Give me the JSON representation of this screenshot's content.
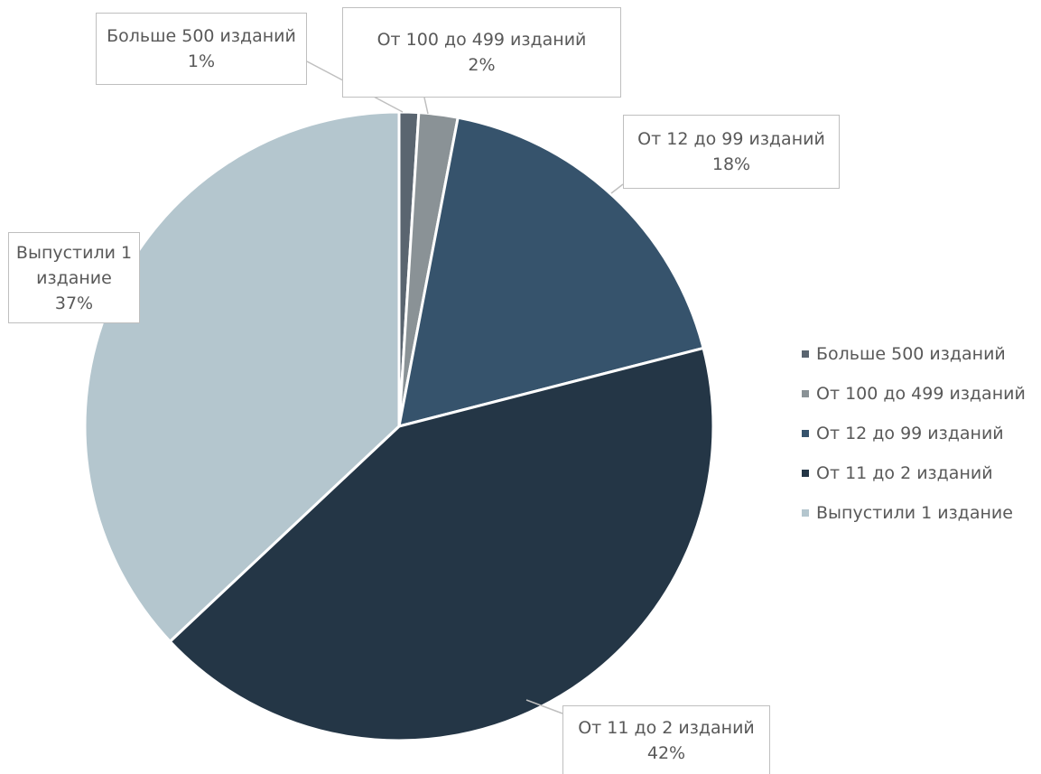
{
  "chart_data": {
    "type": "pie",
    "title": "",
    "slices": [
      {
        "label": "Больше 500 изданий",
        "value": 1,
        "value_label": "1%",
        "color": "#5a6570"
      },
      {
        "label": "От 100 до 499 изданий",
        "value": 2,
        "value_label": "2%",
        "color": "#8a9296"
      },
      {
        "label": "От 12 до 99 изданий",
        "value": 18,
        "value_label": "18%",
        "color": "#36536c"
      },
      {
        "label": "От 11 до 2 изданий",
        "value": 42,
        "value_label": "42%",
        "color": "#243646"
      },
      {
        "label": "Выпустили 1 издание",
        "value": 37,
        "value_label": "37%",
        "color": "#b4c6ce"
      }
    ],
    "legend": {
      "position": "right",
      "items": [
        {
          "label": "Больше 500 изданий",
          "color": "#5a6570"
        },
        {
          "label": "От 100 до 499 изданий",
          "color": "#8a9296"
        },
        {
          "label": "От 12 до 99 изданий",
          "color": "#36536c"
        },
        {
          "label": "От 11 до 2 изданий",
          "color": "#243646"
        },
        {
          "label": "Выпустили 1 издание",
          "color": "#b4c6ce"
        }
      ]
    },
    "labels": [
      {
        "lines": [
          "Больше 500 изданий"
        ],
        "value": "1%"
      },
      {
        "lines": [
          "От 100 до 499 изданий"
        ],
        "value": "2%"
      },
      {
        "lines": [
          "От 12 до 99 изданий"
        ],
        "value": "18%"
      },
      {
        "lines": [
          "От 11 до 2 изданий"
        ],
        "value": "42%"
      },
      {
        "lines": [
          "Выпустили 1",
          "издание"
        ],
        "value": "37%"
      }
    ]
  }
}
